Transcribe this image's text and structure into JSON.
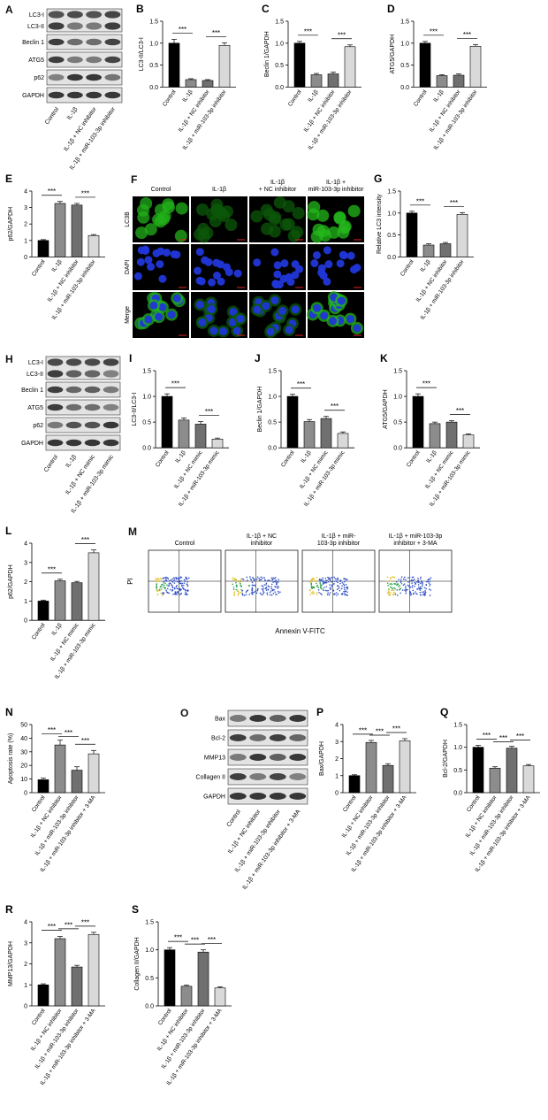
{
  "panels": {
    "A": {
      "label": "A",
      "bands": [
        "LC3-I",
        "LC3-II",
        "Beclin 1",
        "ATG5",
        "p62",
        "GAPDH"
      ],
      "groups": [
        "Control",
        "IL-1β",
        "IL-1β + NC inhibitor",
        "IL-1β + miR-103-3p inhibitor"
      ]
    },
    "B": {
      "label": "B",
      "ylabel": "LC3-II/LC3-I",
      "ylim": [
        0,
        1.5
      ],
      "yticks": [
        "0.0",
        "0.5",
        "1.0",
        "1.5"
      ],
      "categories": [
        "Control",
        "IL-1β",
        "IL-1β + NC inhibitor",
        "IL-1β + miR-103-3p inhibitor"
      ],
      "values": [
        1.0,
        0.17,
        0.15,
        0.95
      ],
      "errors": [
        0.09,
        0.02,
        0.02,
        0.06
      ],
      "sig": [
        "***",
        "***"
      ]
    },
    "C": {
      "label": "C",
      "ylabel": "Beclin 1/GAPDH",
      "ylim": [
        0,
        1.5
      ],
      "yticks": [
        "0.0",
        "0.5",
        "1.0",
        "1.5"
      ],
      "categories": [
        "Control",
        "IL-1β",
        "IL-1β + NC inhibitor",
        "IL-1β + miR-103-3p inhibitor"
      ],
      "values": [
        1.0,
        0.28,
        0.3,
        0.92
      ],
      "errors": [
        0.04,
        0.03,
        0.04,
        0.04
      ],
      "sig": [
        "***",
        "***"
      ]
    },
    "D": {
      "label": "D",
      "ylabel": "ATG5/GAPDH",
      "ylim": [
        0,
        1.5
      ],
      "yticks": [
        "0.0",
        "0.5",
        "1.0",
        "1.5"
      ],
      "categories": [
        "Control",
        "IL-1β",
        "IL-1β + NC inhibitor",
        "IL-1β + miR-103-3p inhibitor"
      ],
      "values": [
        1.0,
        0.26,
        0.27,
        0.93
      ],
      "errors": [
        0.04,
        0.02,
        0.03,
        0.04
      ],
      "sig": [
        "***",
        "***"
      ]
    },
    "E": {
      "label": "E",
      "ylabel": "p62/GAPDH",
      "ylim": [
        0,
        4
      ],
      "yticks": [
        "0",
        "1",
        "2",
        "3",
        "4"
      ],
      "categories": [
        "Control",
        "IL-1β",
        "IL-1β + NC inhibitor",
        "IL-1β + miR-103-3p inhibitor"
      ],
      "values": [
        1.0,
        3.25,
        3.15,
        1.3
      ],
      "errors": [
        0.05,
        0.12,
        0.1,
        0.06
      ],
      "sig": [
        "***",
        "***"
      ]
    },
    "F": {
      "label": "F",
      "cols": [
        "Control",
        "IL-1β",
        "IL-1β\n+ NC inhibitor",
        "IL-1β +\nmiR-103-3p inhibitor"
      ],
      "rows": [
        "LC3B",
        "DAPI",
        "Merge"
      ]
    },
    "G": {
      "label": "G",
      "ylabel": "Relative LC3 intensity",
      "ylim": [
        0,
        1.5
      ],
      "yticks": [
        "0.0",
        "0.5",
        "1.0",
        "1.5"
      ],
      "categories": [
        "Control",
        "IL-1β",
        "IL-1β + NC inhibitor",
        "IL-1β + miR-103-3p inhibitor"
      ],
      "values": [
        1.0,
        0.27,
        0.3,
        0.97
      ],
      "errors": [
        0.04,
        0.03,
        0.03,
        0.04
      ],
      "sig": [
        "***",
        "***"
      ]
    },
    "H": {
      "label": "H",
      "bands": [
        "LC3-I",
        "LC3-II",
        "Beclin 1",
        "ATG5",
        "p62",
        "GAPDH"
      ],
      "groups": [
        "Control",
        "IL-1β",
        "IL-1β + NC mimic",
        "IL-1β + miR-103-3p mimic"
      ]
    },
    "I": {
      "label": "I",
      "ylabel": "LC3-II/LC3-I",
      "ylim": [
        0,
        1.5
      ],
      "yticks": [
        "0.0",
        "0.5",
        "1.0",
        "1.5"
      ],
      "categories": [
        "Control",
        "IL-1β",
        "IL-1β + NC mimic",
        "IL-1β + miR-103-3p mimic"
      ],
      "values": [
        1.0,
        0.54,
        0.46,
        0.17
      ],
      "errors": [
        0.05,
        0.04,
        0.05,
        0.02
      ],
      "sig": [
        "***",
        "***"
      ]
    },
    "J": {
      "label": "J",
      "ylabel": "Beclin 1/GAPDH",
      "ylim": [
        0,
        1.5
      ],
      "yticks": [
        "0.0",
        "0.5",
        "1.0",
        "1.5"
      ],
      "categories": [
        "Control",
        "IL-1β",
        "IL-1β + NC mimic",
        "IL-1β + miR-103-3p mimic"
      ],
      "values": [
        1.0,
        0.51,
        0.57,
        0.28
      ],
      "errors": [
        0.04,
        0.04,
        0.04,
        0.03
      ],
      "sig": [
        "***",
        "***"
      ]
    },
    "K": {
      "label": "K",
      "ylabel": "ATG5/GAPDH",
      "ylim": [
        0,
        1.5
      ],
      "yticks": [
        "0.0",
        "0.5",
        "1.0",
        "1.5"
      ],
      "categories": [
        "Control",
        "IL-1β",
        "IL-1β + NC mimic",
        "IL-1β + miR-103-3p mimic"
      ],
      "values": [
        1.0,
        0.47,
        0.5,
        0.25
      ],
      "errors": [
        0.05,
        0.03,
        0.03,
        0.02
      ],
      "sig": [
        "***",
        "***"
      ]
    },
    "L": {
      "label": "L",
      "ylabel": "p62/GAPDH",
      "ylim": [
        0,
        4
      ],
      "yticks": [
        "0",
        "1",
        "2",
        "3",
        "4"
      ],
      "categories": [
        "Control",
        "IL-1β",
        "IL-1β + NC mimic",
        "IL-1β + miR-103-3p mimic"
      ],
      "values": [
        1.0,
        2.05,
        1.95,
        3.5
      ],
      "errors": [
        0.05,
        0.08,
        0.07,
        0.15
      ],
      "sig": [
        "***",
        "***"
      ]
    },
    "M": {
      "label": "M",
      "cols": [
        "Control",
        "IL-1β + NC\ninhibitor",
        "IL-1β + miR-\n103-3p inhibitor",
        "IL-1β + miR-103-3p\ninhibitor + 3-MA"
      ],
      "ylabel": "PI",
      "xlabel": "Annexin V-FITC"
    },
    "N": {
      "label": "N",
      "ylabel": "Apoptosis rate (%)",
      "ylim": [
        0,
        50
      ],
      "yticks": [
        "0",
        "10",
        "20",
        "30",
        "40",
        "50"
      ],
      "categories": [
        "Control",
        "IL-1β + NC inhibitor",
        "IL-1β + miR-103-3p inhibitor",
        "IL-1β + miR-103-3p inhibitor + 3-MA"
      ],
      "values": [
        9.5,
        35,
        16.5,
        28.5
      ],
      "errors": [
        1.2,
        3.5,
        2.5,
        2.5
      ],
      "sig": [
        "***",
        "***",
        "***"
      ]
    },
    "O": {
      "label": "O",
      "bands": [
        "Bax",
        "Bcl-2",
        "MMP13",
        "Collagen II",
        "GAPDH"
      ],
      "groups": [
        "Control",
        "IL-1β + NC inhibitor",
        "IL-1β + miR-103-3p inhibitor",
        "IL-1β + miR-103-3p inhibitor + 3-MA"
      ]
    },
    "P": {
      "label": "P",
      "ylabel": "Bax/GAPDH",
      "ylim": [
        0,
        4
      ],
      "yticks": [
        "0",
        "1",
        "2",
        "3",
        "4"
      ],
      "categories": [
        "Control",
        "IL-1β + NC inhibitor",
        "IL-1β + miR-103-3p inhibitor",
        "IL-1β + miR-103-3p inhibitor + 3-MA"
      ],
      "values": [
        1.0,
        2.95,
        1.6,
        3.05
      ],
      "errors": [
        0.05,
        0.12,
        0.1,
        0.12
      ],
      "sig": [
        "***",
        "***",
        "***"
      ]
    },
    "Q": {
      "label": "Q",
      "ylabel": "Bcl-2/GAPDH",
      "ylim": [
        0,
        1.5
      ],
      "yticks": [
        "0.0",
        "0.5",
        "1.0",
        "1.5"
      ],
      "categories": [
        "Control",
        "IL-1β + NC inhibitor",
        "IL-1β + miR-103-3p inhibitor",
        "IL-1β + miR-103-3p inhibitor + 3-MA"
      ],
      "values": [
        1.0,
        0.54,
        0.98,
        0.59
      ],
      "errors": [
        0.04,
        0.03,
        0.04,
        0.03
      ],
      "sig": [
        "***",
        "***",
        "***"
      ]
    },
    "R": {
      "label": "R",
      "ylabel": "MMP13/GAPDH",
      "ylim": [
        0,
        4
      ],
      "yticks": [
        "0",
        "1",
        "2",
        "3",
        "4"
      ],
      "categories": [
        "Control",
        "IL-1β + NC inhibitor",
        "IL-1β + miR-103-3p inhibitor",
        "IL-1β + miR-103-3p inhibitor + 3-MA"
      ],
      "values": [
        1.0,
        3.2,
        1.85,
        3.4
      ],
      "errors": [
        0.05,
        0.1,
        0.08,
        0.1
      ],
      "sig": [
        "***",
        "***",
        "***"
      ]
    },
    "S": {
      "label": "S",
      "ylabel": "Collagen II/GAPDH",
      "ylim": [
        0,
        1.5
      ],
      "yticks": [
        "0.0",
        "0.5",
        "1.0",
        "1.5"
      ],
      "categories": [
        "Control",
        "IL-1β + NC inhibitor",
        "IL-1β + miR-103-3p inhibitor",
        "IL-1β + miR-103-3p inhibitor + 3-MA"
      ],
      "values": [
        1.0,
        0.35,
        0.96,
        0.32
      ],
      "errors": [
        0.04,
        0.02,
        0.04,
        0.02
      ],
      "sig": [
        "***",
        "***",
        "***"
      ]
    }
  },
  "colors": {
    "bar1": "#000000",
    "bar2": "#8c8c8c",
    "bar3": "#707070",
    "bar4": "#d9d9d9"
  },
  "chart_data": [
    {
      "type": "bar",
      "title": "B",
      "ylabel": "LC3-II/LC3-I",
      "categories": [
        "Control",
        "IL-1β",
        "IL-1β + NC inhibitor",
        "IL-1β + miR-103-3p inhibitor"
      ],
      "values": [
        1.0,
        0.17,
        0.15,
        0.95
      ],
      "ylim": [
        0,
        1.5
      ]
    },
    {
      "type": "bar",
      "title": "C",
      "ylabel": "Beclin 1/GAPDH",
      "categories": [
        "Control",
        "IL-1β",
        "IL-1β + NC inhibitor",
        "IL-1β + miR-103-3p inhibitor"
      ],
      "values": [
        1.0,
        0.28,
        0.3,
        0.92
      ],
      "ylim": [
        0,
        1.5
      ]
    },
    {
      "type": "bar",
      "title": "D",
      "ylabel": "ATG5/GAPDH",
      "categories": [
        "Control",
        "IL-1β",
        "IL-1β + NC inhibitor",
        "IL-1β + miR-103-3p inhibitor"
      ],
      "values": [
        1.0,
        0.26,
        0.27,
        0.93
      ],
      "ylim": [
        0,
        1.5
      ]
    },
    {
      "type": "bar",
      "title": "E",
      "ylabel": "p62/GAPDH",
      "categories": [
        "Control",
        "IL-1β",
        "IL-1β + NC inhibitor",
        "IL-1β + miR-103-3p inhibitor"
      ],
      "values": [
        1.0,
        3.25,
        3.15,
        1.3
      ],
      "ylim": [
        0,
        4
      ]
    },
    {
      "type": "bar",
      "title": "G",
      "ylabel": "Relative LC3 intensity",
      "categories": [
        "Control",
        "IL-1β",
        "IL-1β + NC inhibitor",
        "IL-1β + miR-103-3p inhibitor"
      ],
      "values": [
        1.0,
        0.27,
        0.3,
        0.97
      ],
      "ylim": [
        0,
        1.5
      ]
    },
    {
      "type": "bar",
      "title": "I",
      "ylabel": "LC3-II/LC3-I",
      "categories": [
        "Control",
        "IL-1β",
        "IL-1β + NC mimic",
        "IL-1β + miR-103-3p mimic"
      ],
      "values": [
        1.0,
        0.54,
        0.46,
        0.17
      ],
      "ylim": [
        0,
        1.5
      ]
    },
    {
      "type": "bar",
      "title": "J",
      "ylabel": "Beclin 1/GAPDH",
      "categories": [
        "Control",
        "IL-1β",
        "IL-1β + NC mimic",
        "IL-1β + miR-103-3p mimic"
      ],
      "values": [
        1.0,
        0.51,
        0.57,
        0.28
      ],
      "ylim": [
        0,
        1.5
      ]
    },
    {
      "type": "bar",
      "title": "K",
      "ylabel": "ATG5/GAPDH",
      "categories": [
        "Control",
        "IL-1β",
        "IL-1β + NC mimic",
        "IL-1β + miR-103-3p mimic"
      ],
      "values": [
        1.0,
        0.47,
        0.5,
        0.25
      ],
      "ylim": [
        0,
        1.5
      ]
    },
    {
      "type": "bar",
      "title": "L",
      "ylabel": "p62/GAPDH",
      "categories": [
        "Control",
        "IL-1β",
        "IL-1β + NC mimic",
        "IL-1β + miR-103-3p mimic"
      ],
      "values": [
        1.0,
        2.05,
        1.95,
        3.5
      ],
      "ylim": [
        0,
        4
      ]
    },
    {
      "type": "bar",
      "title": "N",
      "ylabel": "Apoptosis rate (%)",
      "categories": [
        "Control",
        "IL-1β + NC inhibitor",
        "IL-1β + miR-103-3p inhibitor",
        "IL-1β + miR-103-3p inhibitor + 3-MA"
      ],
      "values": [
        9.5,
        35,
        16.5,
        28.5
      ],
      "ylim": [
        0,
        50
      ]
    },
    {
      "type": "bar",
      "title": "P",
      "ylabel": "Bax/GAPDH",
      "categories": [
        "Control",
        "IL-1β + NC inhibitor",
        "IL-1β + miR-103-3p inhibitor",
        "IL-1β + miR-103-3p inhibitor + 3-MA"
      ],
      "values": [
        1.0,
        2.95,
        1.6,
        3.05
      ],
      "ylim": [
        0,
        4
      ]
    },
    {
      "type": "bar",
      "title": "Q",
      "ylabel": "Bcl-2/GAPDH",
      "categories": [
        "Control",
        "IL-1β + NC inhibitor",
        "IL-1β + miR-103-3p inhibitor",
        "IL-1β + miR-103-3p inhibitor + 3-MA"
      ],
      "values": [
        1.0,
        0.54,
        0.98,
        0.59
      ],
      "ylim": [
        0,
        1.5
      ]
    },
    {
      "type": "bar",
      "title": "R",
      "ylabel": "MMP13/GAPDH",
      "categories": [
        "Control",
        "IL-1β + NC inhibitor",
        "IL-1β + miR-103-3p inhibitor",
        "IL-1β + miR-103-3p inhibitor + 3-MA"
      ],
      "values": [
        1.0,
        3.2,
        1.85,
        3.4
      ],
      "ylim": [
        0,
        4
      ]
    },
    {
      "type": "bar",
      "title": "S",
      "ylabel": "Collagen II/GAPDH",
      "categories": [
        "Control",
        "IL-1β + NC inhibitor",
        "IL-1β + miR-103-3p inhibitor",
        "IL-1β + miR-103-3p inhibitor + 3-MA"
      ],
      "values": [
        1.0,
        0.35,
        0.96,
        0.32
      ],
      "ylim": [
        0,
        1.5
      ]
    }
  ]
}
